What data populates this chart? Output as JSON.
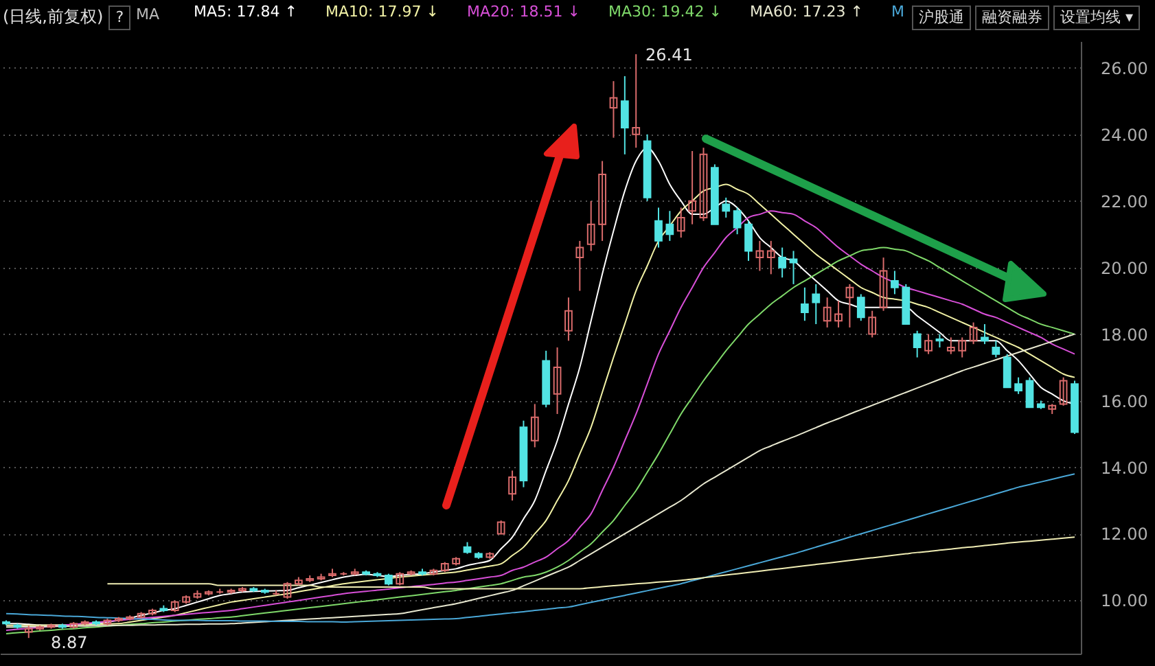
{
  "chart_data": {
    "type": "candlestick",
    "title": "(日线,前复权)",
    "categories": [
      null,
      null,
      null,
      null,
      null,
      null,
      null,
      null,
      null,
      null,
      null,
      null,
      null,
      null,
      null,
      null,
      null,
      null,
      null,
      null,
      null,
      null,
      null,
      null,
      null,
      null,
      null,
      null,
      null,
      null,
      null,
      null,
      null,
      null,
      null,
      null,
      null,
      null,
      null,
      null,
      null,
      null,
      null,
      null,
      null,
      null,
      null,
      null,
      null,
      null,
      null,
      null,
      null,
      null,
      null,
      null,
      null,
      null,
      null,
      null,
      null,
      null,
      null,
      null,
      null,
      null,
      null,
      null,
      null,
      null,
      null,
      null,
      null,
      null,
      null,
      null,
      null,
      null,
      null,
      null,
      null,
      null,
      null,
      null,
      null,
      null,
      null,
      null,
      null,
      null,
      null,
      null,
      null,
      null,
      null,
      null
    ],
    "ohlc": [
      [
        9.35,
        9.4,
        9.25,
        9.3
      ],
      [
        9.25,
        9.3,
        9.15,
        9.2
      ],
      [
        9.05,
        9.25,
        8.87,
        9.15
      ],
      [
        9.15,
        9.25,
        9.1,
        9.2
      ],
      [
        9.2,
        9.3,
        9.15,
        9.25
      ],
      [
        9.25,
        9.3,
        9.15,
        9.2
      ],
      [
        9.2,
        9.35,
        9.15,
        9.3
      ],
      [
        9.3,
        9.4,
        9.25,
        9.35
      ],
      [
        9.35,
        9.4,
        9.25,
        9.3
      ],
      [
        9.3,
        9.45,
        9.25,
        9.4
      ],
      [
        9.4,
        9.5,
        9.35,
        9.45
      ],
      [
        9.45,
        9.55,
        9.4,
        9.5
      ],
      [
        9.5,
        9.65,
        9.45,
        9.6
      ],
      [
        9.6,
        9.75,
        9.55,
        9.7
      ],
      [
        9.75,
        9.85,
        9.65,
        9.7
      ],
      [
        9.7,
        10.0,
        9.65,
        9.95
      ],
      [
        9.95,
        10.15,
        9.9,
        10.1
      ],
      [
        10.1,
        10.3,
        10.05,
        10.2
      ],
      [
        10.2,
        10.3,
        10.15,
        10.25
      ],
      [
        10.25,
        10.35,
        10.2,
        10.25
      ],
      [
        10.25,
        10.35,
        10.2,
        10.3
      ],
      [
        10.3,
        10.4,
        10.25,
        10.35
      ],
      [
        10.35,
        10.4,
        10.25,
        10.3
      ],
      [
        10.3,
        10.35,
        10.2,
        10.25
      ],
      [
        10.2,
        10.3,
        10.15,
        10.2
      ],
      [
        10.1,
        10.55,
        10.05,
        10.5
      ],
      [
        10.5,
        10.7,
        10.45,
        10.6
      ],
      [
        10.6,
        10.75,
        10.55,
        10.65
      ],
      [
        10.65,
        10.8,
        10.6,
        10.7
      ],
      [
        10.75,
        10.95,
        10.7,
        10.8
      ],
      [
        10.8,
        10.85,
        10.75,
        10.8
      ],
      [
        10.8,
        10.95,
        10.75,
        10.85
      ],
      [
        10.85,
        10.9,
        10.75,
        10.8
      ],
      [
        10.8,
        10.85,
        10.7,
        10.75
      ],
      [
        10.75,
        10.8,
        10.45,
        10.5
      ],
      [
        10.5,
        10.85,
        10.45,
        10.8
      ],
      [
        10.8,
        10.9,
        10.75,
        10.85
      ],
      [
        10.85,
        10.95,
        10.75,
        10.8
      ],
      [
        10.8,
        10.95,
        10.75,
        10.9
      ],
      [
        10.9,
        11.15,
        10.85,
        11.1
      ],
      [
        11.1,
        11.3,
        11.05,
        11.25
      ],
      [
        11.6,
        11.75,
        11.4,
        11.45
      ],
      [
        11.4,
        11.45,
        11.25,
        11.3
      ],
      [
        11.3,
        11.45,
        11.25,
        11.4
      ],
      [
        12.0,
        12.4,
        12.0,
        12.35
      ],
      [
        13.2,
        13.9,
        13.0,
        13.7
      ],
      [
        15.2,
        15.4,
        13.4,
        13.6
      ],
      [
        14.8,
        15.9,
        14.6,
        15.5
      ],
      [
        17.2,
        17.5,
        15.8,
        15.9
      ],
      [
        16.2,
        17.6,
        15.6,
        17.0
      ],
      [
        18.1,
        19.1,
        17.8,
        18.7
      ],
      [
        20.3,
        20.8,
        19.3,
        20.6
      ],
      [
        20.7,
        22.0,
        20.5,
        21.3
      ],
      [
        21.3,
        23.2,
        20.8,
        22.8
      ],
      [
        24.8,
        25.6,
        23.9,
        25.1
      ],
      [
        25.0,
        25.75,
        23.4,
        24.2
      ],
      [
        24.0,
        26.41,
        23.6,
        24.2
      ],
      [
        23.8,
        24.0,
        22.0,
        22.1
      ],
      [
        21.4,
        21.8,
        20.6,
        20.8
      ],
      [
        21.3,
        21.7,
        20.8,
        21.0
      ],
      [
        21.1,
        21.8,
        20.9,
        21.5
      ],
      [
        21.7,
        23.5,
        21.3,
        22.0
      ],
      [
        21.5,
        23.6,
        21.4,
        23.4
      ],
      [
        23.0,
        23.1,
        21.3,
        21.3
      ],
      [
        21.9,
        22.1,
        21.5,
        21.7
      ],
      [
        21.7,
        21.8,
        21.0,
        21.2
      ],
      [
        21.3,
        21.4,
        20.2,
        20.5
      ],
      [
        20.3,
        20.8,
        19.9,
        20.5
      ],
      [
        20.3,
        20.8,
        19.8,
        20.5
      ],
      [
        20.3,
        20.6,
        19.7,
        20.0
      ],
      [
        20.25,
        20.5,
        19.5,
        20.15
      ],
      [
        18.9,
        19.4,
        18.4,
        18.65
      ],
      [
        19.2,
        19.5,
        18.3,
        18.95
      ],
      [
        18.4,
        19.1,
        18.2,
        18.8
      ],
      [
        18.4,
        19.0,
        18.2,
        18.6
      ],
      [
        19.1,
        19.5,
        18.2,
        19.4
      ],
      [
        19.1,
        19.2,
        18.4,
        18.5
      ],
      [
        18.0,
        18.7,
        17.9,
        18.5
      ],
      [
        18.8,
        20.3,
        18.7,
        19.9
      ],
      [
        19.6,
        19.9,
        19.2,
        19.4
      ],
      [
        19.4,
        19.5,
        18.3,
        18.3
      ],
      [
        18.0,
        18.1,
        17.3,
        17.6
      ],
      [
        17.5,
        18.0,
        17.4,
        17.8
      ],
      [
        17.85,
        18.0,
        17.6,
        17.8
      ],
      [
        17.5,
        17.9,
        17.4,
        17.6
      ],
      [
        17.5,
        17.9,
        17.3,
        17.8
      ],
      [
        17.8,
        18.35,
        17.7,
        18.2
      ],
      [
        17.9,
        18.3,
        17.7,
        17.8
      ],
      [
        17.6,
        17.8,
        17.3,
        17.4
      ],
      [
        17.3,
        17.4,
        16.4,
        16.4
      ],
      [
        16.5,
        16.7,
        16.2,
        16.3
      ],
      [
        16.6,
        16.7,
        15.8,
        15.8
      ],
      [
        15.9,
        16.0,
        15.75,
        15.8
      ],
      [
        15.75,
        15.9,
        15.6,
        15.85
      ],
      [
        15.9,
        16.7,
        15.85,
        16.6
      ],
      [
        16.5,
        16.6,
        15.0,
        15.05
      ]
    ],
    "colors": [
      "#52e3e3",
      "#52e3e3",
      "#d96b6b",
      "#d96b6b",
      "#d96b6b",
      "#52e3e3",
      "#d96b6b",
      "#d96b6b",
      "#52e3e3",
      "#d96b6b",
      "#d96b6b",
      "#d96b6b",
      "#d96b6b",
      "#d96b6b",
      "#52e3e3",
      "#d96b6b",
      "#d96b6b",
      "#d96b6b",
      "#d96b6b",
      "#d96b6b",
      "#d96b6b",
      "#d96b6b",
      "#52e3e3",
      "#52e3e3",
      "#d96b6b",
      "#d96b6b",
      "#d96b6b",
      "#d96b6b",
      "#d96b6b",
      "#d96b6b",
      "#d96b6b",
      "#d96b6b",
      "#52e3e3",
      "#52e3e3",
      "#52e3e3",
      "#d96b6b",
      "#d96b6b",
      "#52e3e3",
      "#d96b6b",
      "#d96b6b",
      "#d96b6b",
      "#52e3e3",
      "#52e3e3",
      "#d96b6b",
      "#d96b6b",
      "#d96b6b",
      "#52e3e3",
      "#d96b6b",
      "#52e3e3",
      "#d96b6b",
      "#d96b6b",
      "#d96b6b",
      "#d96b6b",
      "#d96b6b",
      "#d96b6b",
      "#52e3e3",
      "#d96b6b",
      "#52e3e3",
      "#52e3e3",
      "#52e3e3",
      "#d96b6b",
      "#d96b6b",
      "#d96b6b",
      "#52e3e3",
      "#52e3e3",
      "#52e3e3",
      "#52e3e3",
      "#d96b6b",
      "#d96b6b",
      "#52e3e3",
      "#52e3e3",
      "#52e3e3",
      "#52e3e3",
      "#d96b6b",
      "#d96b6b",
      "#d96b6b",
      "#52e3e3",
      "#d96b6b",
      "#d96b6b",
      "#52e3e3",
      "#52e3e3",
      "#52e3e3",
      "#d96b6b",
      "#52e3e3",
      "#d96b6b",
      "#d96b6b",
      "#d96b6b",
      "#52e3e3",
      "#52e3e3",
      "#52e3e3",
      "#52e3e3",
      "#52e3e3",
      "#52e3e3",
      "#d96b6b",
      "#d96b6b",
      "#52e3e3"
    ],
    "series": [
      {
        "type": "line",
        "name": "MA5: 17.84 ↑",
        "color": "#ffffff",
        "values": [
          9.3,
          9.3,
          9.28,
          9.26,
          9.25,
          9.25,
          9.27,
          9.3,
          9.32,
          9.35,
          9.4,
          9.47,
          9.55,
          9.62,
          9.7,
          9.75,
          9.85,
          9.95,
          10.05,
          10.15,
          10.2,
          10.25,
          10.27,
          10.28,
          10.29,
          10.3,
          10.38,
          10.46,
          10.54,
          10.62,
          10.7,
          10.75,
          10.78,
          10.75,
          10.72,
          10.75,
          10.78,
          10.8,
          10.85,
          10.9,
          10.95,
          11.05,
          11.12,
          11.2,
          11.55,
          11.9,
          12.45,
          13.0,
          13.9,
          14.8,
          15.9,
          17.0,
          18.4,
          19.8,
          21.1,
          22.3,
          23.2,
          23.6,
          23.2,
          22.5,
          22.0,
          21.6,
          21.6,
          21.8,
          22.0,
          21.8,
          21.4,
          20.9,
          20.6,
          20.3,
          20.2,
          19.9,
          19.6,
          19.3,
          19.0,
          18.9,
          18.8,
          18.8,
          18.8,
          18.8,
          18.8,
          18.55,
          18.3,
          18.05,
          17.8,
          17.8,
          17.8,
          17.8,
          17.8,
          17.5,
          17.2,
          16.8,
          16.4,
          16.2,
          16.0,
          15.9
        ]
      },
      {
        "type": "line",
        "name": "MA10: 17.97 ↓",
        "color": "#f2f2a6",
        "values": [
          9.25,
          9.25,
          9.25,
          9.25,
          9.26,
          9.26,
          9.27,
          9.27,
          9.28,
          9.29,
          9.3,
          9.35,
          9.4,
          9.45,
          9.5,
          9.55,
          9.63,
          9.71,
          9.79,
          9.87,
          9.95,
          10.0,
          10.05,
          10.1,
          10.15,
          10.2,
          10.26,
          10.32,
          10.38,
          10.44,
          10.5,
          10.54,
          10.58,
          10.62,
          10.66,
          10.7,
          10.73,
          10.76,
          10.79,
          10.82,
          10.85,
          10.91,
          10.97,
          11.03,
          11.1,
          11.35,
          11.6,
          12.0,
          12.4,
          13.0,
          13.6,
          14.4,
          15.2,
          16.25,
          17.3,
          18.3,
          19.3,
          20.05,
          20.8,
          21.25,
          21.7,
          22.0,
          22.3,
          22.4,
          22.5,
          22.35,
          22.2,
          21.9,
          21.6,
          21.3,
          21.0,
          20.7,
          20.4,
          20.15,
          19.9,
          19.65,
          19.4,
          19.25,
          19.1,
          19.05,
          19.0,
          18.9,
          18.8,
          18.65,
          18.5,
          18.35,
          18.2,
          18.05,
          17.9,
          17.75,
          17.6,
          17.4,
          17.2,
          17.0,
          16.8,
          16.7
        ]
      },
      {
        "type": "line",
        "name": "MA20: 18.51 ↓",
        "color": "#d84fd8",
        "values": [
          9.1,
          9.13,
          9.16,
          9.19,
          9.22,
          9.25,
          9.28,
          9.31,
          9.34,
          9.37,
          9.4,
          9.43,
          9.46,
          9.49,
          9.52,
          9.55,
          9.58,
          9.61,
          9.64,
          9.67,
          9.7,
          9.75,
          9.8,
          9.85,
          9.9,
          9.95,
          10.0,
          10.05,
          10.1,
          10.15,
          10.2,
          10.24,
          10.27,
          10.31,
          10.34,
          10.38,
          10.41,
          10.45,
          10.48,
          10.52,
          10.55,
          10.6,
          10.65,
          10.7,
          10.75,
          10.9,
          11.0,
          11.15,
          11.3,
          11.55,
          11.8,
          12.2,
          12.6,
          13.3,
          14.0,
          14.8,
          15.6,
          16.5,
          17.4,
          18.1,
          18.8,
          19.4,
          20.0,
          20.45,
          20.9,
          21.2,
          21.5,
          21.6,
          21.7,
          21.65,
          21.6,
          21.4,
          21.2,
          20.9,
          20.6,
          20.35,
          20.1,
          19.9,
          19.7,
          19.55,
          19.4,
          19.3,
          19.2,
          19.1,
          19.0,
          18.9,
          18.75,
          18.6,
          18.5,
          18.35,
          18.2,
          18.05,
          17.9,
          17.7,
          17.55,
          17.4
        ]
      },
      {
        "type": "line",
        "name": "MA30: 19.42 ↓",
        "color": "#7fd96a",
        "values": [
          9.0,
          9.03,
          9.05,
          9.08,
          9.1,
          9.13,
          9.15,
          9.18,
          9.2,
          9.23,
          9.25,
          9.28,
          9.3,
          9.33,
          9.35,
          9.38,
          9.4,
          9.43,
          9.45,
          9.48,
          9.5,
          9.54,
          9.58,
          9.62,
          9.66,
          9.7,
          9.74,
          9.78,
          9.82,
          9.86,
          9.9,
          9.94,
          9.98,
          10.02,
          10.06,
          10.1,
          10.14,
          10.18,
          10.22,
          10.26,
          10.3,
          10.35,
          10.4,
          10.45,
          10.5,
          10.6,
          10.7,
          10.75,
          10.85,
          11.0,
          11.2,
          11.45,
          11.7,
          12.05,
          12.4,
          12.85,
          13.3,
          13.85,
          14.4,
          15.0,
          15.6,
          16.1,
          16.6,
          17.05,
          17.5,
          17.9,
          18.3,
          18.6,
          18.9,
          19.15,
          19.4,
          19.6,
          19.8,
          20.0,
          20.2,
          20.35,
          20.5,
          20.55,
          20.6,
          20.55,
          20.5,
          20.35,
          20.2,
          20.0,
          19.8,
          19.6,
          19.4,
          19.2,
          19.0,
          18.8,
          18.6,
          18.45,
          18.3,
          18.2,
          18.1,
          18.0
        ]
      },
      {
        "type": "line",
        "name": "MA60: 17.23 ↑",
        "color": "#e8e8d0",
        "values": [
          9.2,
          9.2,
          9.21,
          9.21,
          9.22,
          9.22,
          9.23,
          9.23,
          9.24,
          9.24,
          9.25,
          9.25,
          9.26,
          9.26,
          9.27,
          9.27,
          9.28,
          9.28,
          9.29,
          9.29,
          9.3,
          9.32,
          9.34,
          9.36,
          9.38,
          9.4,
          9.42,
          9.44,
          9.46,
          9.48,
          9.5,
          9.52,
          9.54,
          9.56,
          9.58,
          9.6,
          9.66,
          9.72,
          9.78,
          9.84,
          9.9,
          9.98,
          10.06,
          10.14,
          10.22,
          10.3,
          10.44,
          10.58,
          10.72,
          10.86,
          11.0,
          11.2,
          11.4,
          11.6,
          11.8,
          12.0,
          12.2,
          12.4,
          12.6,
          12.8,
          13.0,
          13.25,
          13.5,
          13.7,
          13.9,
          14.1,
          14.3,
          14.5,
          14.64,
          14.78,
          14.91,
          15.05,
          15.19,
          15.33,
          15.46,
          15.6,
          15.73,
          15.86,
          15.99,
          16.12,
          16.25,
          16.38,
          16.51,
          16.64,
          16.77,
          16.9,
          17.01,
          17.12,
          17.23,
          17.34,
          17.45,
          17.56,
          17.67,
          17.78,
          17.89,
          18.0
        ]
      },
      {
        "type": "line",
        "name": "M",
        "color": "#4aa8d8",
        "values": [
          9.6,
          9.59,
          9.57,
          9.56,
          9.55,
          9.53,
          9.52,
          9.51,
          9.49,
          9.48,
          9.47,
          9.45,
          9.44,
          9.43,
          9.41,
          9.4,
          9.4,
          9.4,
          9.39,
          9.39,
          9.39,
          9.38,
          9.38,
          9.38,
          9.37,
          9.37,
          9.37,
          9.36,
          9.36,
          9.36,
          9.35,
          9.36,
          9.37,
          9.38,
          9.39,
          9.4,
          9.41,
          9.42,
          9.43,
          9.44,
          9.45,
          9.49,
          9.52,
          9.56,
          9.59,
          9.63,
          9.66,
          9.7,
          9.73,
          9.77,
          9.8,
          9.87,
          9.94,
          10.01,
          10.08,
          10.15,
          10.22,
          10.29,
          10.36,
          10.43,
          10.5,
          10.59,
          10.68,
          10.77,
          10.86,
          10.95,
          11.04,
          11.13,
          11.22,
          11.31,
          11.4,
          11.5,
          11.6,
          11.7,
          11.8,
          11.9,
          12.0,
          12.1,
          12.2,
          12.3,
          12.4,
          12.5,
          12.6,
          12.7,
          12.8,
          12.9,
          13.0,
          13.1,
          13.2,
          13.3,
          13.4,
          13.48,
          13.56,
          13.64,
          13.72,
          13.8
        ]
      },
      {
        "type": "line",
        "color": "#f0edb4",
        "values": [
          null,
          null,
          null,
          null,
          null,
          null,
          null,
          null,
          null,
          10.5,
          10.5,
          10.5,
          10.5,
          10.5,
          10.5,
          10.5,
          10.5,
          10.5,
          10.5,
          10.45,
          10.45,
          10.45,
          10.45,
          10.45,
          10.45,
          10.45,
          10.45,
          10.45,
          10.4,
          10.4,
          10.4,
          10.4,
          10.4,
          10.4,
          10.4,
          10.4,
          10.4,
          10.4,
          10.35,
          10.35,
          10.35,
          10.35,
          10.35,
          10.35,
          10.35,
          10.35,
          10.35,
          10.35,
          10.35,
          10.35,
          10.35,
          10.35,
          10.38,
          10.41,
          10.44,
          10.47,
          10.5,
          10.52,
          10.55,
          10.57,
          10.6,
          10.64,
          10.68,
          10.72,
          10.76,
          10.8,
          10.84,
          10.88,
          10.92,
          10.96,
          11.0,
          11.04,
          11.08,
          11.12,
          11.16,
          11.2,
          11.24,
          11.28,
          11.32,
          11.36,
          11.4,
          11.44,
          11.47,
          11.51,
          11.54,
          11.58,
          11.61,
          11.65,
          11.68,
          11.72,
          11.75,
          11.78,
          11.81,
          11.84,
          11.87,
          11.9
        ]
      }
    ],
    "ylim": [
      8.4,
      26.8
    ],
    "yticks": [
      {
        "value": 10,
        "label": "10.00"
      },
      {
        "value": 12,
        "label": "12.00"
      },
      {
        "value": 14,
        "label": "14.00"
      },
      {
        "value": 16,
        "label": "16.00"
      },
      {
        "value": 18,
        "label": "18.00"
      },
      {
        "value": 20,
        "label": "20.00"
      },
      {
        "value": 22,
        "label": "22.00"
      },
      {
        "value": 24,
        "label": "24.00"
      },
      {
        "value": 26,
        "label": "26.00"
      }
    ],
    "grid": "y",
    "legend": "top",
    "tick_labels": "y",
    "annotations": [
      "?",
      "MA",
      "沪股通",
      "融资融券",
      "设置均线 ▾",
      "26.41",
      "8.87"
    ]
  }
}
